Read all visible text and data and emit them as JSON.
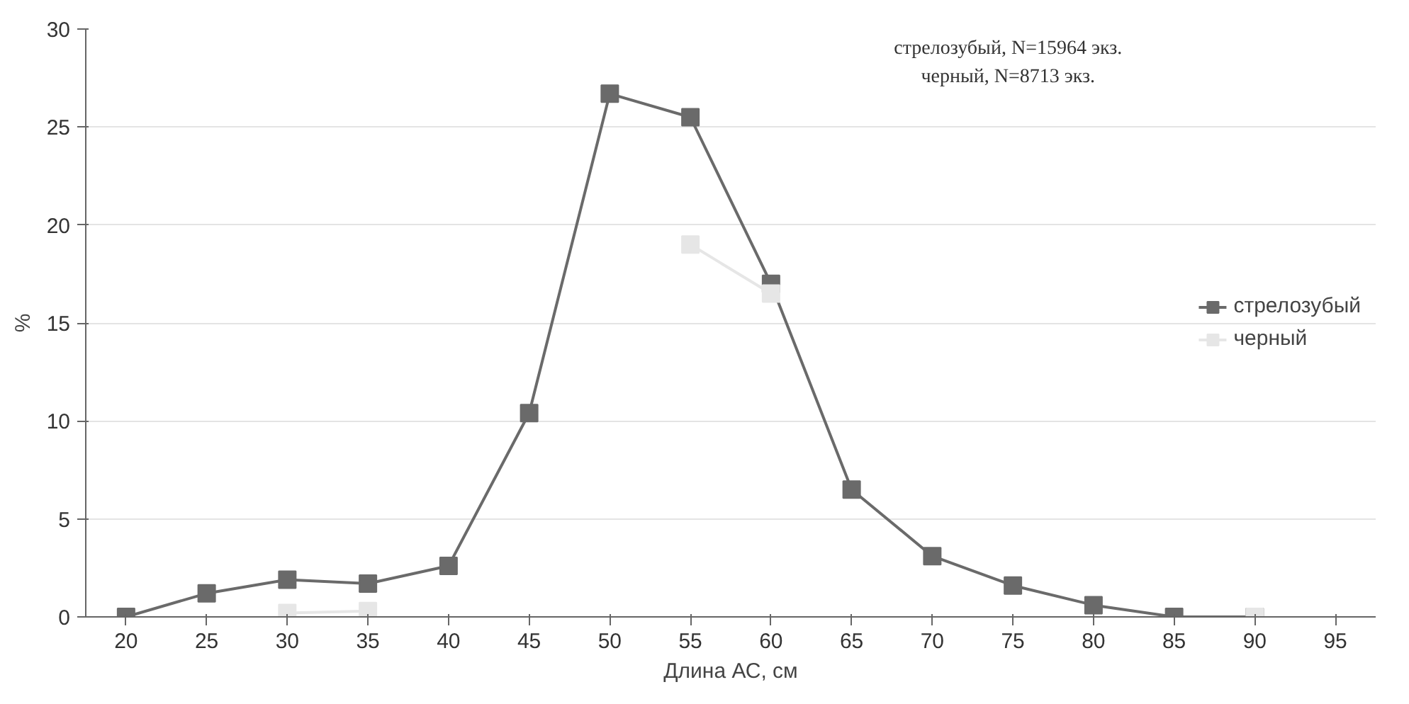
{
  "chart_data": {
    "type": "line",
    "xlabel": "Длина АС, см",
    "ylabel": "%",
    "x": [
      20,
      25,
      30,
      35,
      40,
      45,
      50,
      55,
      60,
      65,
      70,
      75,
      80,
      85,
      90
    ],
    "series": [
      {
        "name": "стрелозубый",
        "color": "#6a6a6a",
        "values": [
          0,
          1.2,
          1.9,
          1.7,
          2.6,
          10.4,
          26.7,
          25.5,
          17,
          6.5,
          3.1,
          1.6,
          0.6,
          0,
          0
        ]
      },
      {
        "name": "черный",
        "color": "#e6e6e6",
        "values": [
          null,
          null,
          0.2,
          0.3,
          null,
          null,
          null,
          19,
          16.5,
          null,
          null,
          null,
          null,
          null,
          0
        ]
      }
    ],
    "xlim": [
      17.5,
      97.5
    ],
    "xticks": [
      20,
      25,
      30,
      35,
      40,
      45,
      50,
      55,
      60,
      65,
      70,
      75,
      80,
      85,
      90,
      95
    ],
    "ylim": [
      0,
      30
    ],
    "yticks": [
      0,
      5,
      10,
      15,
      20,
      25,
      30
    ],
    "grid": "y",
    "legend": "right",
    "marker": "square",
    "annotations": [
      "стрелозубый, N=15964 экз.",
      "черный, N=8713 экз."
    ]
  }
}
